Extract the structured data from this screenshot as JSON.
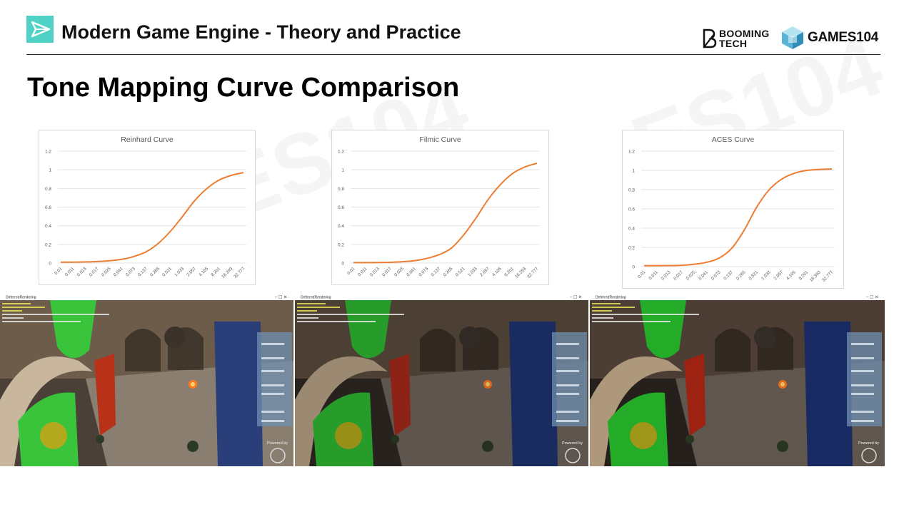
{
  "header": {
    "course_title": "Modern Game Engine - Theory and Practice",
    "booming_line1": "BOOMING",
    "booming_line2": "TECH",
    "games_logo": "GAMES104",
    "logo_icon": "paper-plane-icon",
    "accent_color": "#4fd1c5"
  },
  "page_title": "Tone Mapping Curve Comparison",
  "chart_data": [
    {
      "type": "line",
      "title": "Reinhard Curve",
      "categories": [
        "0.01",
        "0.011",
        "0.013",
        "0.017",
        "0.025",
        "0.041",
        "0.073",
        "0.137",
        "0.265",
        "0.521",
        "1.033",
        "2.057",
        "4.105",
        "8.201",
        "16.393",
        "32.777"
      ],
      "values": [
        0.01,
        0.01,
        0.012,
        0.016,
        0.025,
        0.04,
        0.07,
        0.12,
        0.21,
        0.34,
        0.5,
        0.67,
        0.8,
        0.89,
        0.94,
        0.97
      ],
      "ylim": [
        0,
        1.2
      ],
      "yticks": [
        "0",
        "0.2",
        "0.4",
        "0.6",
        "0.8",
        "1",
        "1.2"
      ],
      "grid": true,
      "line_color": "#ed7d31"
    },
    {
      "type": "line",
      "title": "Filmic Curve",
      "categories": [
        "0.01",
        "0.011",
        "0.013",
        "0.017",
        "0.025",
        "0.041",
        "0.073",
        "0.137",
        "0.265",
        "0.521",
        "1.033",
        "2.057",
        "4.105",
        "8.201",
        "16.393",
        "32.777"
      ],
      "values": [
        0.005,
        0.005,
        0.006,
        0.008,
        0.014,
        0.026,
        0.05,
        0.09,
        0.16,
        0.3,
        0.48,
        0.68,
        0.84,
        0.96,
        1.03,
        1.07
      ],
      "ylim": [
        0,
        1.2
      ],
      "yticks": [
        "0",
        "0.2",
        "0.4",
        "0.6",
        "0.8",
        "1",
        "1.2"
      ],
      "grid": true,
      "line_color": "#ed7d31"
    },
    {
      "type": "line",
      "title": "ACES Curve",
      "categories": [
        "0.01",
        "0.011",
        "0.013",
        "0.017",
        "0.025",
        "0.041",
        "0.073",
        "0.137",
        "0.265",
        "0.521",
        "1.033",
        "2.057",
        "4.105",
        "8.201",
        "16.393",
        "32.777"
      ],
      "values": [
        0.01,
        0.01,
        0.011,
        0.014,
        0.025,
        0.045,
        0.09,
        0.19,
        0.38,
        0.62,
        0.8,
        0.91,
        0.97,
        1.0,
        1.01,
        1.015
      ],
      "ylim": [
        0,
        1.2
      ],
      "yticks": [
        "0",
        "0.2",
        "0.4",
        "0.6",
        "0.8",
        "1",
        "1.2"
      ],
      "grid": true,
      "line_color": "#ed7d31"
    }
  ],
  "screenshots": [
    {
      "window_title": "DeferredRendering",
      "powered_by": "Powered by",
      "tone": "reinhard"
    },
    {
      "window_title": "DeferredRendering",
      "powered_by": "Powered by",
      "tone": "filmic"
    },
    {
      "window_title": "DeferredRendering",
      "powered_by": "Powered by",
      "tone": "aces"
    }
  ]
}
